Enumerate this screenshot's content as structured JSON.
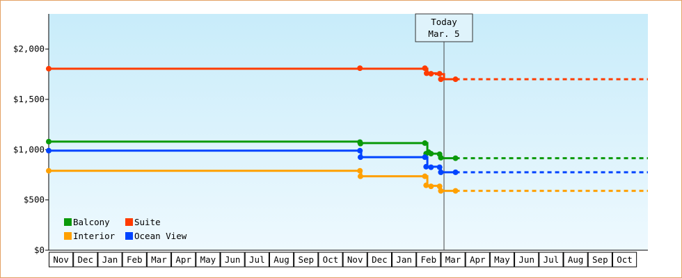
{
  "chart_data": {
    "type": "line",
    "title": "",
    "xlabel": "",
    "ylabel": "",
    "ylim": [
      0,
      2350
    ],
    "y_ticks": [
      {
        "value": 0,
        "label": "$0"
      },
      {
        "value": 500,
        "label": "$500"
      },
      {
        "value": 1000,
        "label": "$1,000"
      },
      {
        "value": 1500,
        "label": "$1,500"
      },
      {
        "value": 2000,
        "label": "$2,000"
      }
    ],
    "x_months": [
      "Nov",
      "Dec",
      "Jan",
      "Feb",
      "Mar",
      "Apr",
      "May",
      "Jun",
      "Jul",
      "Aug",
      "Sep",
      "Oct",
      "Nov",
      "Dec",
      "Jan",
      "Feb",
      "Mar",
      "Apr",
      "May",
      "Jun",
      "Jul",
      "Aug",
      "Sep",
      "Oct"
    ],
    "x_range_months": [
      0,
      24.45
    ],
    "today": {
      "line1": "Today",
      "line2": "Mar. 5",
      "x": 16.13
    },
    "background_gradient": [
      "#c8ecfa",
      "#eef9fe"
    ],
    "legend_position": "bottom-left",
    "series": [
      {
        "name": "Suite",
        "color": "#ff3b00",
        "points": [
          [
            0,
            1805
          ],
          [
            12.7,
            1805
          ],
          [
            15.35,
            1805
          ],
          [
            15.45,
            1760
          ],
          [
            15.8,
            1750
          ],
          [
            16.13,
            1700
          ]
        ],
        "markers": [
          [
            0,
            1805
          ],
          [
            12.7,
            1810
          ],
          [
            15.35,
            1810
          ],
          [
            15.42,
            1760
          ],
          [
            15.6,
            1755
          ],
          [
            15.95,
            1755
          ],
          [
            16.0,
            1700
          ],
          [
            16.6,
            1700
          ]
        ],
        "projection": [
          [
            16.6,
            1700
          ],
          [
            24.45,
            1700
          ]
        ]
      },
      {
        "name": "Balcony",
        "color": "#0a9a0a",
        "points": [
          [
            0,
            1080
          ],
          [
            12.7,
            1080
          ],
          [
            12.75,
            1065
          ],
          [
            15.35,
            1065
          ],
          [
            15.45,
            960
          ],
          [
            15.8,
            960
          ],
          [
            16.0,
            915
          ]
        ],
        "markers": [
          [
            0,
            1080
          ],
          [
            12.7,
            1075
          ],
          [
            12.72,
            1060
          ],
          [
            15.35,
            1065
          ],
          [
            15.4,
            960
          ],
          [
            15.5,
            975
          ],
          [
            15.6,
            960
          ],
          [
            15.95,
            955
          ],
          [
            16.0,
            920
          ],
          [
            16.6,
            915
          ]
        ],
        "projection": [
          [
            16.6,
            915
          ],
          [
            24.45,
            915
          ]
        ]
      },
      {
        "name": "Ocean View",
        "color": "#0044ff",
        "points": [
          [
            0,
            990
          ],
          [
            12.7,
            990
          ],
          [
            12.75,
            925
          ],
          [
            15.35,
            925
          ],
          [
            15.45,
            830
          ],
          [
            15.8,
            830
          ],
          [
            16.0,
            775
          ]
        ],
        "markers": [
          [
            0,
            990
          ],
          [
            12.7,
            990
          ],
          [
            12.72,
            925
          ],
          [
            15.35,
            925
          ],
          [
            15.4,
            830
          ],
          [
            15.6,
            825
          ],
          [
            15.95,
            825
          ],
          [
            16.0,
            775
          ],
          [
            16.6,
            775
          ]
        ],
        "projection": [
          [
            16.6,
            775
          ],
          [
            24.45,
            775
          ]
        ]
      },
      {
        "name": "Interior",
        "color": "#ffa000",
        "points": [
          [
            0,
            790
          ],
          [
            12.7,
            790
          ],
          [
            12.75,
            735
          ],
          [
            15.35,
            735
          ],
          [
            15.45,
            640
          ],
          [
            15.8,
            640
          ],
          [
            16.0,
            590
          ]
        ],
        "markers": [
          [
            0,
            790
          ],
          [
            12.7,
            790
          ],
          [
            12.72,
            735
          ],
          [
            15.35,
            735
          ],
          [
            15.4,
            645
          ],
          [
            15.6,
            635
          ],
          [
            15.95,
            635
          ],
          [
            16.0,
            590
          ],
          [
            16.6,
            590
          ]
        ],
        "projection": [
          [
            16.6,
            590
          ],
          [
            24.45,
            590
          ]
        ]
      }
    ],
    "legend": [
      {
        "name": "Balcony",
        "color": "#0a9a0a"
      },
      {
        "name": "Suite",
        "color": "#ff3b00"
      },
      {
        "name": "Interior",
        "color": "#ffa000"
      },
      {
        "name": "Ocean View",
        "color": "#0044ff"
      }
    ]
  }
}
